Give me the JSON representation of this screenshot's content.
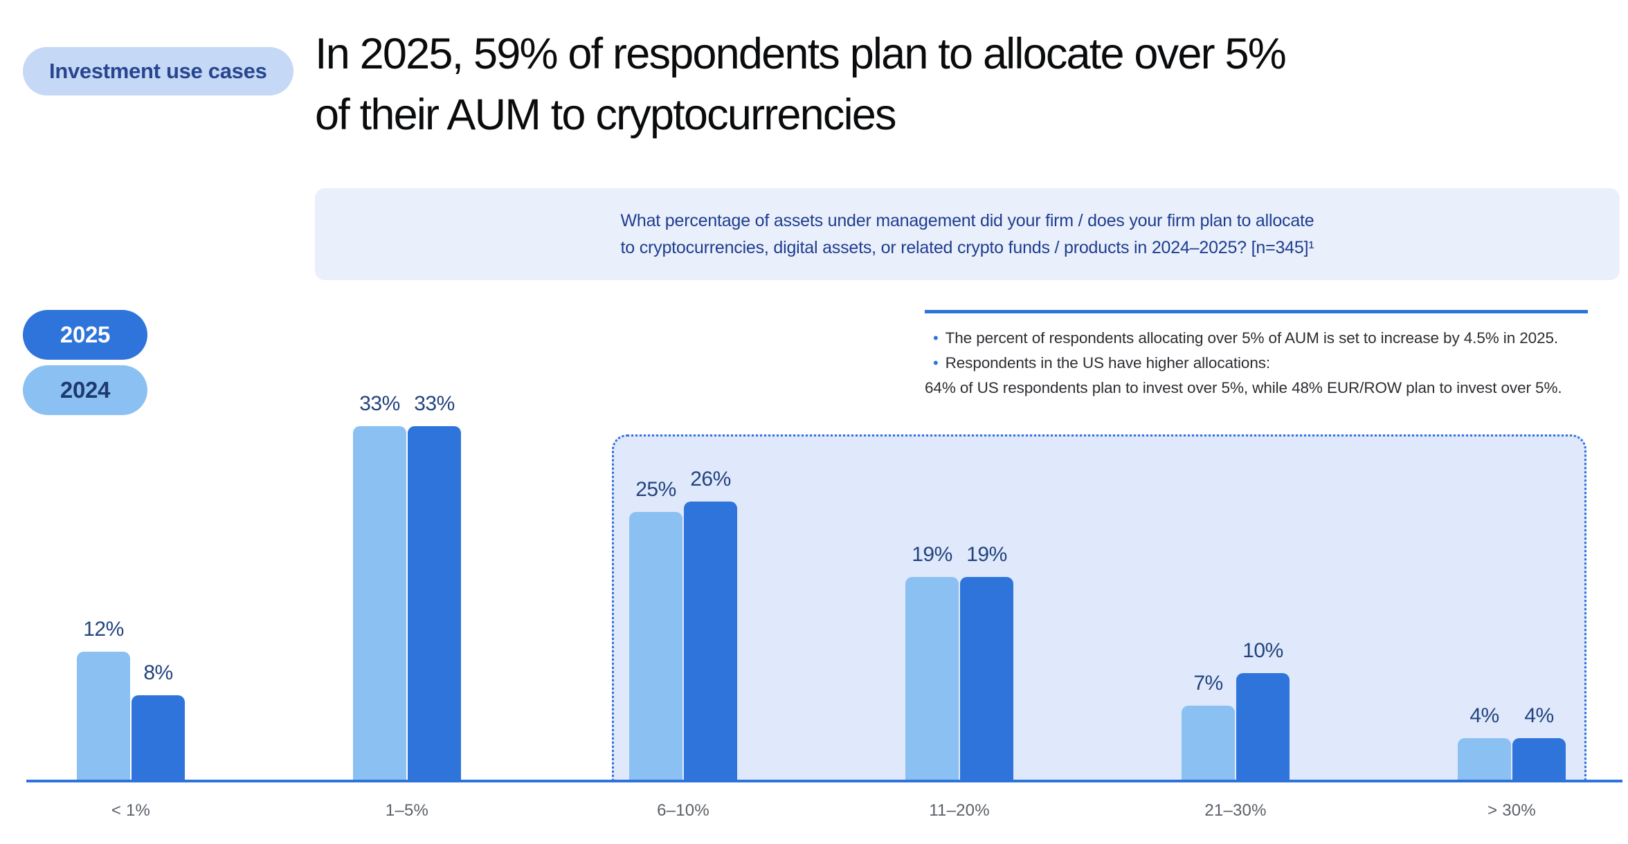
{
  "badge": {
    "label": "Investment use cases"
  },
  "title": {
    "full": "In 2025, 59% of respondents plan to allocate over 5% of their AUM to cryptocurrencies",
    "lines": [
      "In 2025, 59% of respondents plan to allocate over 5%",
      "of their AUM to cryptocurrencies"
    ]
  },
  "question": {
    "lines": [
      "What percentage of assets under management did your firm / does your firm plan to allocate",
      "to cryptocurrencies, digital assets, or related crypto funds / products in 2024–2025? [n=345]¹"
    ]
  },
  "legend": [
    {
      "label": "2025",
      "color": "#2e74db",
      "text_color": "#ffffff"
    },
    {
      "label": "2024",
      "color": "#8bc0f3",
      "text_color": "#1e3a70"
    }
  ],
  "callout": {
    "items": [
      {
        "bullet": true,
        "text": "The percent of respondents allocating over 5% of AUM is set to increase by 4.5% in 2025."
      },
      {
        "bullet": true,
        "text": "Respondents in the US have higher allocations:"
      },
      {
        "bullet": false,
        "text": "64% of US respondents plan to invest over 5%, while 48% EUR/ROW plan to invest over 5%."
      }
    ]
  },
  "chart_data": {
    "type": "bar",
    "title": "In 2025, 59% of respondents plan to allocate over 5% of their AUM to cryptocurrencies",
    "categories": [
      "< 1%",
      "1–5%",
      "6–10%",
      "11–20%",
      "21–30%",
      "> 30%"
    ],
    "series": [
      {
        "name": "2024",
        "color": "#8bc0f3",
        "values": [
          12,
          33,
          25,
          19,
          7,
          4
        ]
      },
      {
        "name": "2025",
        "color": "#2e74db",
        "values": [
          8,
          33,
          26,
          19,
          10,
          4
        ]
      }
    ],
    "unit": "%",
    "value_labels": true,
    "ylim": [
      0,
      36
    ],
    "grid": false,
    "legend_position": "left",
    "highlight_region": {
      "style": "dotted-outline",
      "categories": [
        "6–10%",
        "11–20%",
        "21–30%",
        "> 30%"
      ]
    }
  },
  "colors": {
    "bar_2024": "#8bc0f3",
    "bar_2025": "#2e74db",
    "axis_line": "#2e73db",
    "value_label": "#24437e",
    "category_label": "#5a5f68",
    "badge_bg": "#c5d8f6",
    "badge_text": "#27468f",
    "question_bg": "#e9effb",
    "question_text": "#1e3d8f",
    "highlight_fill": "#dfe9fb",
    "highlight_border": "#2e6fe0",
    "callout_rule": "#2e73db",
    "callout_text": "#2b2d31",
    "title_text": "#0a0b0d"
  }
}
